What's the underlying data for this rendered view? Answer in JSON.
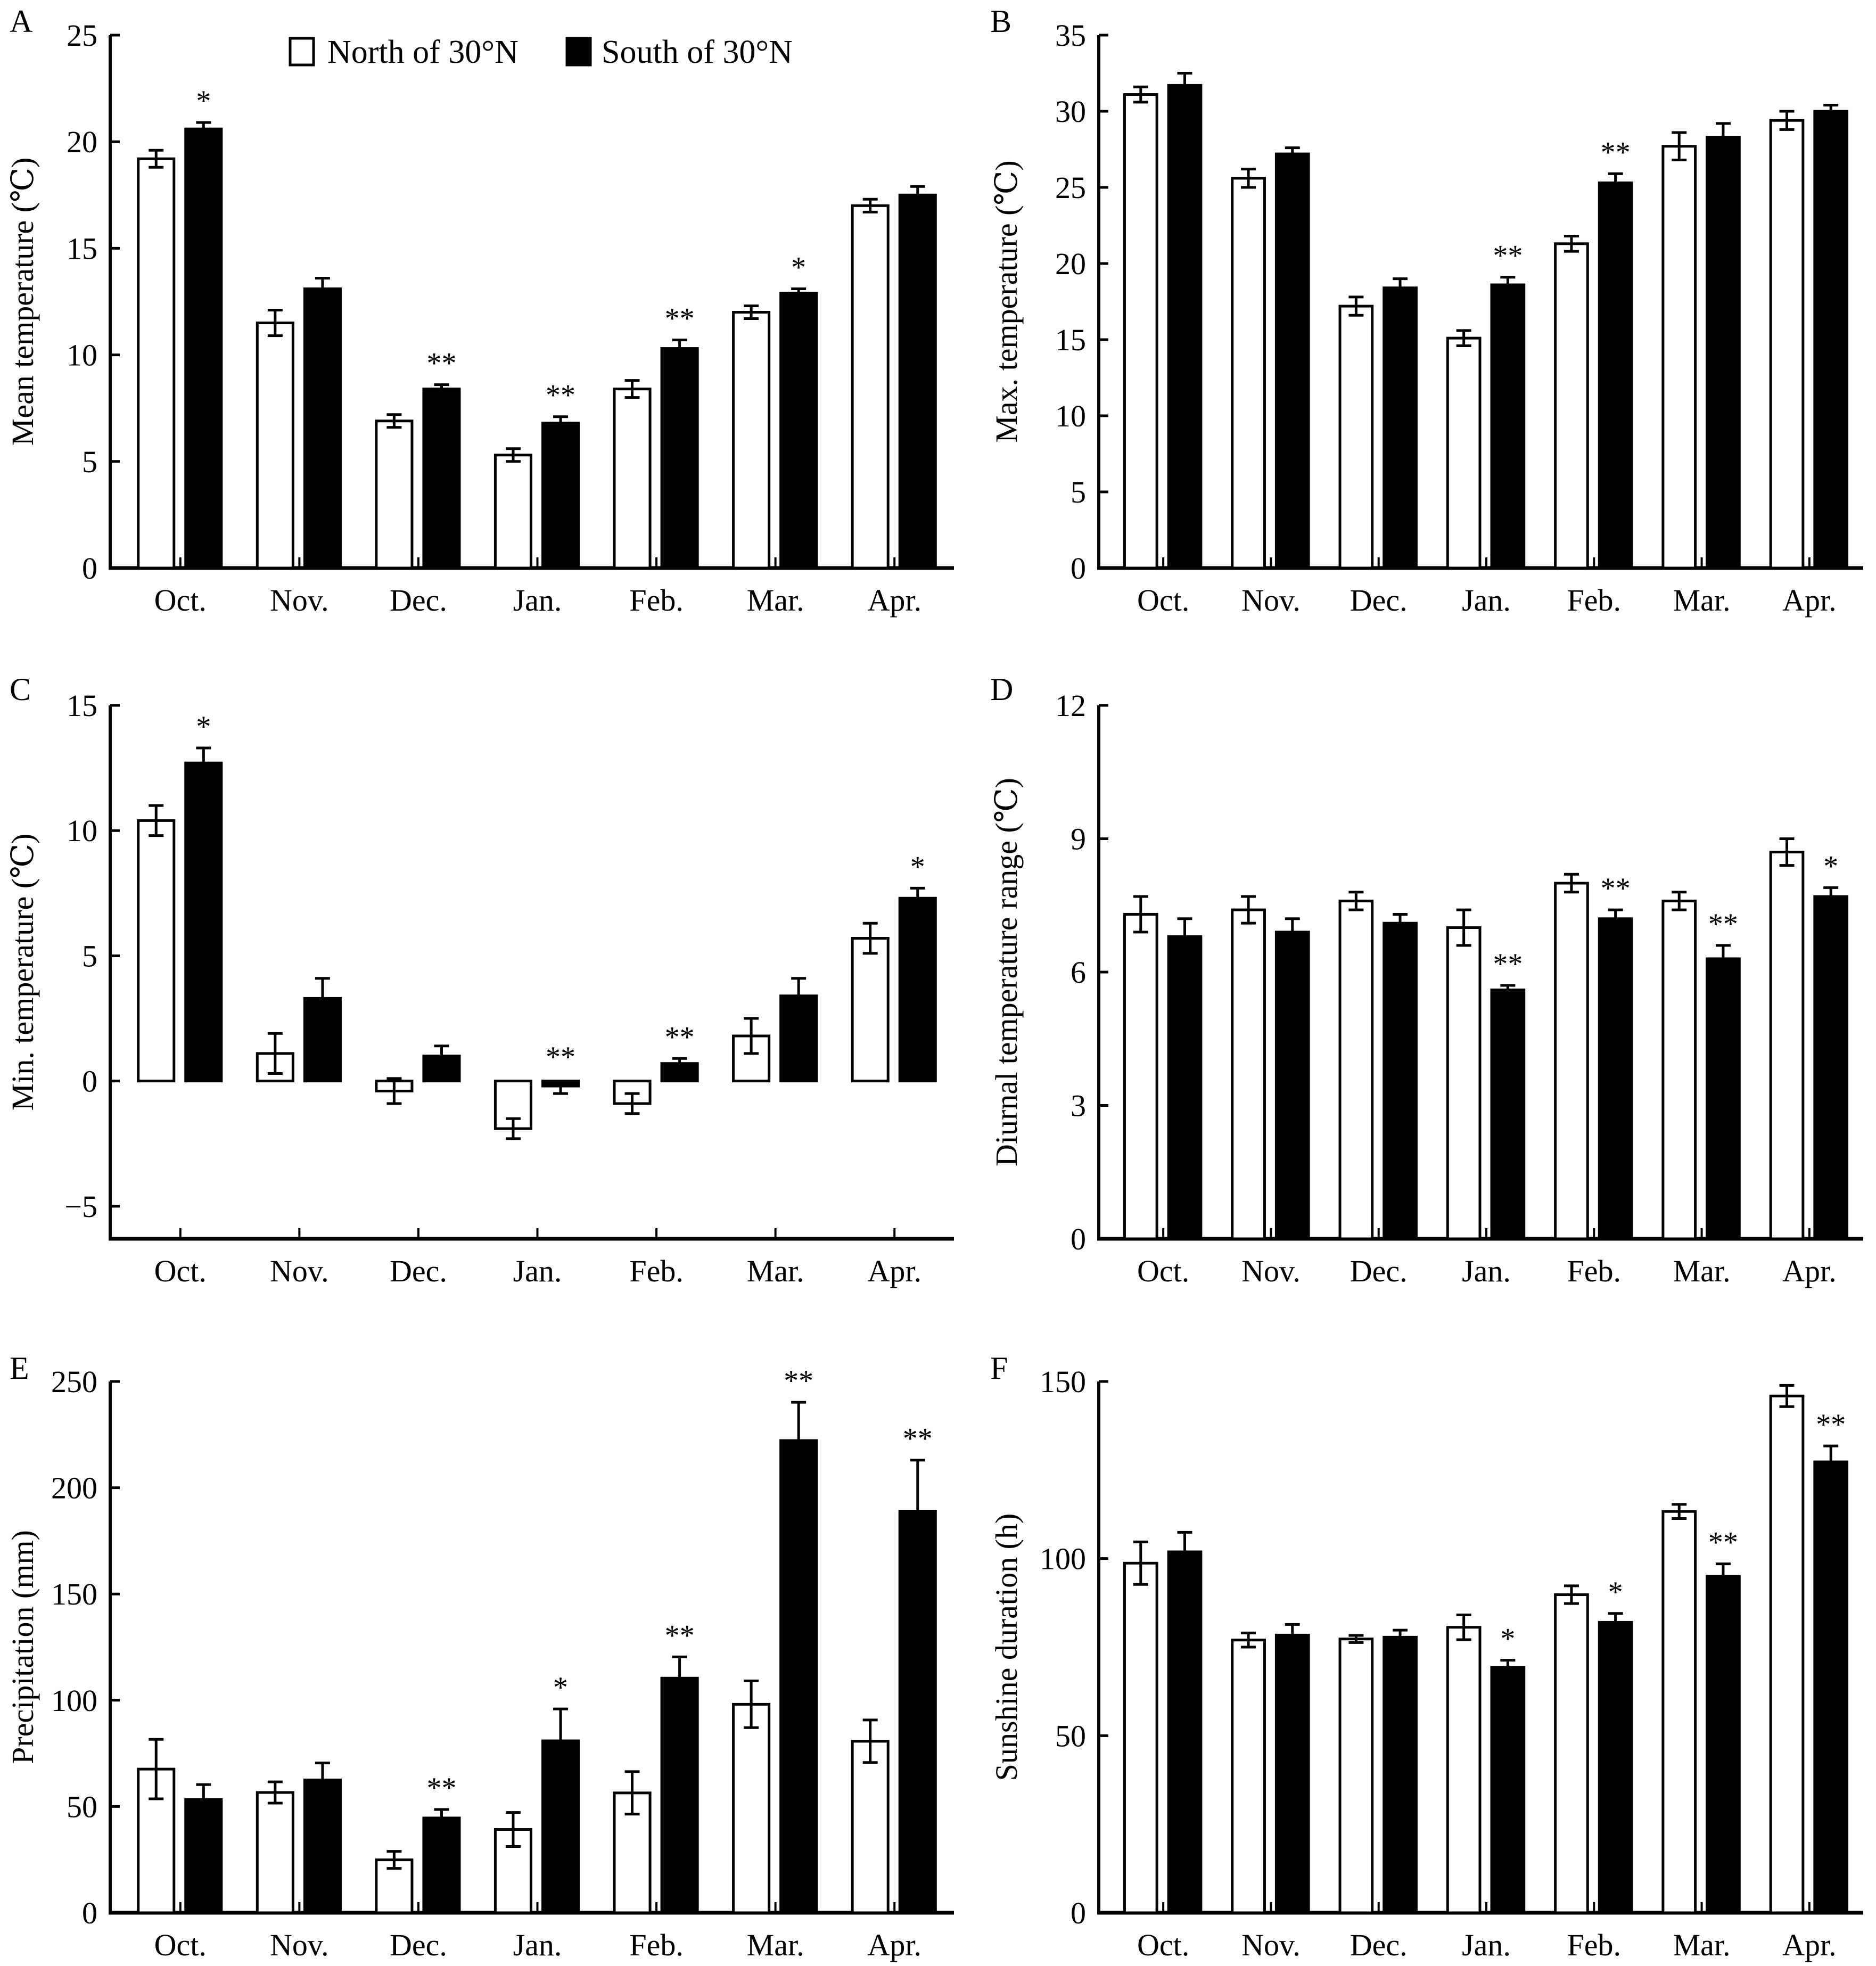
{
  "legend": {
    "north_label": "North of 30°N",
    "south_label": "South of 30°N"
  },
  "colors": {
    "north": "#ffffff",
    "south": "#000000",
    "stroke": "#000000"
  },
  "chart_data": [
    {
      "panel": "A",
      "type": "bar",
      "ylabel": "Mean temperature (℃)",
      "categories": [
        "Oct.",
        "Nov.",
        "Dec.",
        "Jan.",
        "Feb.",
        "Mar.",
        "Apr."
      ],
      "ylim": [
        0,
        25
      ],
      "yticks": [
        0,
        5,
        10,
        15,
        20,
        25
      ],
      "ytick_labels": [
        "0",
        "5",
        "10",
        "15",
        "20",
        "25"
      ],
      "series": [
        {
          "name": "North of 30°N",
          "values": [
            19.2,
            11.5,
            6.9,
            5.3,
            8.4,
            12.0,
            17.0
          ],
          "errors": [
            0.4,
            0.6,
            0.3,
            0.3,
            0.4,
            0.3,
            0.3
          ]
        },
        {
          "name": "South of 30°N",
          "values": [
            20.6,
            13.1,
            8.4,
            6.8,
            10.3,
            12.9,
            17.5
          ],
          "errors": [
            0.3,
            0.5,
            0.2,
            0.3,
            0.4,
            0.2,
            0.4
          ]
        }
      ],
      "significance": [
        "*",
        "",
        "**",
        "**",
        "**",
        "*",
        ""
      ]
    },
    {
      "panel": "B",
      "type": "bar",
      "ylabel": "Max. temperature (℃)",
      "categories": [
        "Oct.",
        "Nov.",
        "Dec.",
        "Jan.",
        "Feb.",
        "Mar.",
        "Apr."
      ],
      "ylim": [
        0,
        35
      ],
      "yticks": [
        0,
        5,
        10,
        15,
        20,
        25,
        30,
        35
      ],
      "ytick_labels": [
        "0",
        "5",
        "10",
        "15",
        "20",
        "25",
        "30",
        "35"
      ],
      "series": [
        {
          "name": "North of 30°N",
          "values": [
            31.1,
            25.6,
            17.2,
            15.1,
            21.3,
            27.7,
            29.4
          ],
          "errors": [
            0.5,
            0.6,
            0.6,
            0.5,
            0.5,
            0.9,
            0.6
          ]
        },
        {
          "name": "South of 30°N",
          "values": [
            31.7,
            27.2,
            18.4,
            18.6,
            25.3,
            28.3,
            30.0
          ],
          "errors": [
            0.8,
            0.4,
            0.6,
            0.5,
            0.6,
            0.9,
            0.4
          ]
        }
      ],
      "significance": [
        "",
        "",
        "",
        "**",
        "**",
        "",
        ""
      ]
    },
    {
      "panel": "C",
      "type": "bar",
      "ylabel": "Min. temperature (℃)",
      "categories": [
        "Oct.",
        "Nov.",
        "Dec.",
        "Jan.",
        "Feb.",
        "Mar.",
        "Apr."
      ],
      "ylim": [
        -6.3,
        15
      ],
      "yticks": [
        -5,
        0,
        5,
        10,
        15
      ],
      "ytick_labels": [
        "−5",
        "0",
        "5",
        "10",
        "15"
      ],
      "series": [
        {
          "name": "North of 30°N",
          "values": [
            10.4,
            1.1,
            -0.4,
            -1.9,
            -0.9,
            1.8,
            5.7
          ],
          "errors": [
            0.6,
            0.8,
            0.5,
            0.4,
            0.4,
            0.7,
            0.6
          ]
        },
        {
          "name": "South of 30°N",
          "values": [
            12.7,
            3.3,
            1.0,
            -0.2,
            0.7,
            3.4,
            7.3
          ],
          "errors": [
            0.6,
            0.8,
            0.4,
            0.3,
            0.2,
            0.7,
            0.4
          ]
        }
      ],
      "significance": [
        "*",
        "",
        "",
        "**",
        "**",
        "",
        "*"
      ]
    },
    {
      "panel": "D",
      "type": "bar",
      "ylabel": "Diurnal temperature range (℃)",
      "categories": [
        "Oct.",
        "Nov.",
        "Dec.",
        "Jan.",
        "Feb.",
        "Mar.",
        "Apr."
      ],
      "ylim": [
        0,
        12
      ],
      "yticks": [
        0,
        3,
        6,
        9,
        12
      ],
      "ytick_labels": [
        "0",
        "3",
        "6",
        "9",
        "12"
      ],
      "series": [
        {
          "name": "North of 30°N",
          "values": [
            7.3,
            7.4,
            7.6,
            7.0,
            8.0,
            7.6,
            8.7
          ],
          "errors": [
            0.4,
            0.3,
            0.2,
            0.4,
            0.2,
            0.2,
            0.3
          ]
        },
        {
          "name": "South of 30°N",
          "values": [
            6.8,
            6.9,
            7.1,
            5.6,
            7.2,
            6.3,
            7.7
          ],
          "errors": [
            0.4,
            0.3,
            0.2,
            0.1,
            0.2,
            0.3,
            0.2
          ]
        }
      ],
      "significance": [
        "",
        "",
        "",
        "**",
        "**",
        "**",
        "*"
      ]
    },
    {
      "panel": "E",
      "type": "bar",
      "ylabel": "Precipitation (mm)",
      "categories": [
        "Oct.",
        "Nov.",
        "Dec.",
        "Jan.",
        "Feb.",
        "Mar.",
        "Apr."
      ],
      "ylim": [
        0,
        250
      ],
      "yticks": [
        0,
        50,
        100,
        150,
        200,
        250
      ],
      "ytick_labels": [
        "0",
        "50",
        "100",
        "150",
        "200",
        "250"
      ],
      "series": [
        {
          "name": "North of 30°N",
          "values": [
            67.6,
            56.6,
            24.9,
            39.2,
            56.4,
            98.1,
            80.7
          ],
          "errors": [
            14,
            5,
            4,
            8,
            10,
            11,
            10
          ]
        },
        {
          "name": "South of 30°N",
          "values": [
            53.3,
            62.5,
            44.6,
            80.9,
            110.4,
            222.2,
            189.0
          ],
          "errors": [
            7,
            8,
            4,
            15,
            10,
            18,
            24
          ]
        }
      ],
      "significance": [
        "",
        "",
        "**",
        "*",
        "**",
        "**",
        "**"
      ]
    },
    {
      "panel": "F",
      "type": "bar",
      "ylabel": "Sunshine duration (h)",
      "categories": [
        "Oct.",
        "Nov.",
        "Dec.",
        "Jan.",
        "Feb.",
        "Mar.",
        "Apr."
      ],
      "ylim": [
        0,
        150
      ],
      "yticks": [
        0,
        50,
        100,
        150
      ],
      "ytick_labels": [
        "0",
        "50",
        "100",
        "150"
      ],
      "series": [
        {
          "name": "North of 30°N",
          "values": [
            98.7,
            77.0,
            77.3,
            80.6,
            89.8,
            113.3,
            145.9
          ],
          "errors": [
            6,
            2,
            1,
            3.5,
            2.5,
            2,
            3
          ]
        },
        {
          "name": "South of 30°N",
          "values": [
            101.9,
            78.4,
            77.8,
            69.3,
            82.0,
            95.0,
            127.3
          ],
          "errors": [
            5.5,
            3,
            2,
            2,
            2.5,
            3.5,
            4.5
          ]
        }
      ],
      "significance": [
        "",
        "",
        "",
        "*",
        "*",
        "**",
        "**"
      ]
    }
  ]
}
